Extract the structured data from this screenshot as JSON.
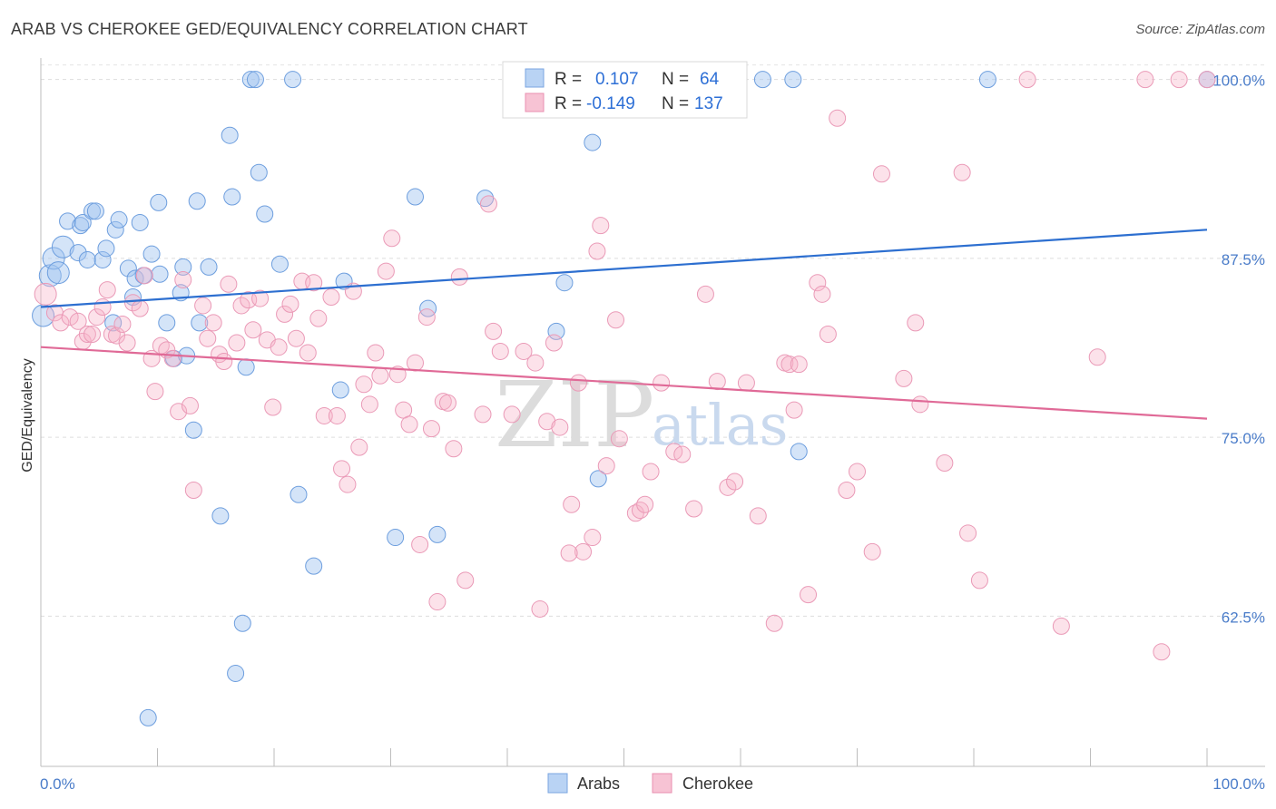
{
  "title": "ARAB VS CHEROKEE GED/EQUIVALENCY CORRELATION CHART",
  "source": "Source: ZipAtlas.com",
  "watermark": {
    "zip": "ZIP",
    "atlas": "atlas"
  },
  "colors": {
    "arabs": "#4a86d8",
    "cherokee": "#e56f9c",
    "axis_text": "#4a7cc9"
  },
  "chart_data": {
    "type": "scatter",
    "ylabel": "GED/Equivalency",
    "xlim": [
      0,
      100
    ],
    "ylim": [
      52,
      101.5
    ],
    "x_ticks": [
      0,
      10,
      20,
      30,
      40,
      50,
      60,
      70,
      80,
      90,
      100
    ],
    "x_tick_labels": {
      "left": "0.0%",
      "right": "100.0%"
    },
    "y_ticks": [
      {
        "value": 100,
        "label": "100.0%"
      },
      {
        "value": 87.5,
        "label": "87.5%"
      },
      {
        "value": 75,
        "label": "75.0%"
      },
      {
        "value": 62.5,
        "label": "62.5%"
      }
    ],
    "grid": true,
    "legend": {
      "placement": "top-center",
      "rows": [
        {
          "r_label": "R =",
          "r_value": "0.107",
          "n_label": "N =",
          "n_value": "64"
        },
        {
          "r_label": "R =",
          "r_value": "-0.149",
          "n_label": "N =",
          "n_value": "137"
        }
      ]
    },
    "series": [
      {
        "name": "Arabs",
        "trend": {
          "x": [
            0,
            100
          ],
          "y": [
            84.1,
            89.5
          ]
        },
        "points": [
          [
            0.2,
            83.5
          ],
          [
            0.8,
            86.3
          ],
          [
            1.1,
            87.5
          ],
          [
            1.5,
            86.5
          ],
          [
            1.9,
            88.3
          ],
          [
            2.3,
            90.1
          ],
          [
            3.2,
            87.9
          ],
          [
            3.4,
            89.8
          ],
          [
            3.6,
            90.0
          ],
          [
            4.0,
            87.4
          ],
          [
            4.4,
            90.8
          ],
          [
            4.7,
            90.8
          ],
          [
            5.3,
            87.4
          ],
          [
            5.6,
            88.2
          ],
          [
            6.2,
            83.0
          ],
          [
            6.4,
            89.5
          ],
          [
            6.7,
            90.2
          ],
          [
            7.5,
            86.8
          ],
          [
            7.9,
            84.8
          ],
          [
            8.1,
            86.1
          ],
          [
            8.5,
            90.0
          ],
          [
            8.8,
            86.3
          ],
          [
            9.5,
            87.8
          ],
          [
            10.1,
            91.4
          ],
          [
            10.2,
            86.4
          ],
          [
            10.8,
            83.0
          ],
          [
            11.4,
            80.5
          ],
          [
            12.0,
            85.1
          ],
          [
            12.2,
            86.9
          ],
          [
            12.5,
            80.7
          ],
          [
            13.1,
            75.5
          ],
          [
            13.4,
            91.5
          ],
          [
            13.6,
            83.0
          ],
          [
            14.4,
            86.9
          ],
          [
            15.4,
            69.5
          ],
          [
            16.2,
            96.1
          ],
          [
            16.4,
            91.8
          ],
          [
            16.7,
            58.5
          ],
          [
            17.3,
            62.0
          ],
          [
            17.6,
            79.9
          ],
          [
            18.0,
            100.0
          ],
          [
            18.4,
            100.0
          ],
          [
            18.7,
            93.5
          ],
          [
            19.2,
            90.6
          ],
          [
            20.5,
            87.1
          ],
          [
            21.6,
            100.0
          ],
          [
            22.1,
            71.0
          ],
          [
            23.4,
            66.0
          ],
          [
            25.7,
            78.3
          ],
          [
            26.0,
            85.9
          ],
          [
            30.4,
            68.0
          ],
          [
            32.1,
            91.8
          ],
          [
            33.2,
            84.0
          ],
          [
            34.0,
            68.2
          ],
          [
            38.1,
            91.7
          ],
          [
            44.2,
            82.4
          ],
          [
            44.9,
            85.8
          ],
          [
            47.3,
            95.6
          ],
          [
            47.8,
            72.1
          ],
          [
            61.9,
            100.0
          ],
          [
            64.5,
            100.0
          ],
          [
            65.0,
            74.0
          ],
          [
            81.2,
            100.0
          ],
          [
            100.0,
            100.0
          ],
          [
            9.2,
            55.4
          ]
        ]
      },
      {
        "name": "Cherokee",
        "trend": {
          "x": [
            0,
            100
          ],
          "y": [
            81.3,
            76.3
          ]
        },
        "points": [
          [
            0.4,
            85.0
          ],
          [
            1.2,
            83.7
          ],
          [
            1.7,
            83.0
          ],
          [
            2.5,
            83.4
          ],
          [
            3.2,
            83.1
          ],
          [
            3.6,
            81.7
          ],
          [
            4.0,
            82.2
          ],
          [
            4.4,
            82.2
          ],
          [
            4.8,
            83.4
          ],
          [
            5.3,
            84.1
          ],
          [
            5.7,
            85.3
          ],
          [
            6.1,
            82.2
          ],
          [
            6.5,
            82.1
          ],
          [
            7.0,
            82.9
          ],
          [
            7.4,
            81.6
          ],
          [
            7.9,
            84.4
          ],
          [
            8.5,
            84.0
          ],
          [
            8.9,
            86.3
          ],
          [
            9.5,
            80.5
          ],
          [
            9.8,
            78.2
          ],
          [
            10.3,
            81.4
          ],
          [
            10.8,
            81.1
          ],
          [
            11.3,
            80.5
          ],
          [
            11.8,
            76.8
          ],
          [
            12.2,
            86.0
          ],
          [
            12.8,
            77.2
          ],
          [
            13.1,
            71.3
          ],
          [
            13.9,
            84.2
          ],
          [
            14.3,
            81.9
          ],
          [
            14.8,
            83.0
          ],
          [
            15.3,
            80.8
          ],
          [
            15.7,
            80.3
          ],
          [
            16.1,
            85.7
          ],
          [
            16.8,
            81.6
          ],
          [
            17.2,
            84.2
          ],
          [
            17.8,
            84.6
          ],
          [
            18.2,
            82.5
          ],
          [
            18.8,
            84.7
          ],
          [
            19.4,
            81.8
          ],
          [
            19.9,
            77.1
          ],
          [
            20.4,
            81.3
          ],
          [
            20.9,
            83.6
          ],
          [
            21.4,
            84.3
          ],
          [
            21.9,
            81.9
          ],
          [
            22.4,
            85.9
          ],
          [
            22.9,
            80.9
          ],
          [
            23.4,
            85.8
          ],
          [
            23.8,
            83.3
          ],
          [
            24.3,
            76.5
          ],
          [
            24.9,
            84.8
          ],
          [
            25.4,
            76.5
          ],
          [
            25.8,
            72.8
          ],
          [
            26.3,
            71.7
          ],
          [
            26.8,
            85.2
          ],
          [
            27.3,
            74.3
          ],
          [
            27.7,
            78.7
          ],
          [
            28.2,
            77.3
          ],
          [
            28.7,
            80.9
          ],
          [
            29.1,
            79.3
          ],
          [
            29.6,
            86.6
          ],
          [
            30.1,
            88.9
          ],
          [
            30.6,
            79.4
          ],
          [
            31.1,
            76.9
          ],
          [
            31.6,
            75.9
          ],
          [
            32.1,
            80.2
          ],
          [
            32.5,
            67.5
          ],
          [
            33.1,
            83.4
          ],
          [
            33.5,
            75.6
          ],
          [
            34.0,
            63.5
          ],
          [
            34.5,
            77.5
          ],
          [
            34.9,
            77.4
          ],
          [
            35.4,
            74.2
          ],
          [
            35.9,
            86.2
          ],
          [
            36.4,
            65.0
          ],
          [
            37.9,
            76.6
          ],
          [
            38.4,
            91.3
          ],
          [
            38.8,
            82.4
          ],
          [
            39.4,
            81.0
          ],
          [
            40.4,
            76.6
          ],
          [
            41.4,
            81.0
          ],
          [
            42.4,
            80.2
          ],
          [
            43.4,
            76.1
          ],
          [
            44.0,
            81.6
          ],
          [
            44.5,
            75.7
          ],
          [
            45.5,
            70.3
          ],
          [
            46.1,
            78.8
          ],
          [
            46.5,
            67.0
          ],
          [
            47.3,
            68.0
          ],
          [
            47.7,
            88.0
          ],
          [
            48.0,
            89.8
          ],
          [
            48.5,
            73.0
          ],
          [
            49.3,
            83.2
          ],
          [
            49.6,
            74.9
          ],
          [
            51.0,
            69.7
          ],
          [
            51.4,
            69.9
          ],
          [
            51.8,
            70.3
          ],
          [
            52.3,
            72.6
          ],
          [
            53.2,
            78.8
          ],
          [
            54.3,
            74.0
          ],
          [
            55.0,
            73.8
          ],
          [
            56.0,
            70.0
          ],
          [
            57.0,
            85.0
          ],
          [
            58.0,
            78.9
          ],
          [
            58.9,
            71.5
          ],
          [
            59.5,
            71.9
          ],
          [
            60.5,
            78.8
          ],
          [
            61.5,
            69.5
          ],
          [
            62.9,
            62.0
          ],
          [
            63.8,
            80.2
          ],
          [
            64.2,
            80.1
          ],
          [
            64.6,
            76.9
          ],
          [
            65.0,
            80.1
          ],
          [
            65.8,
            64.0
          ],
          [
            66.6,
            85.8
          ],
          [
            67.0,
            85.0
          ],
          [
            67.5,
            82.2
          ],
          [
            68.3,
            97.3
          ],
          [
            69.1,
            71.3
          ],
          [
            70.0,
            72.6
          ],
          [
            71.3,
            67.0
          ],
          [
            72.1,
            93.4
          ],
          [
            74.0,
            79.1
          ],
          [
            75.0,
            83.0
          ],
          [
            75.4,
            77.3
          ],
          [
            77.5,
            73.2
          ],
          [
            79.0,
            93.5
          ],
          [
            79.5,
            68.3
          ],
          [
            80.5,
            65.0
          ],
          [
            84.6,
            100.0
          ],
          [
            87.5,
            61.8
          ],
          [
            90.6,
            80.6
          ],
          [
            94.7,
            100.0
          ],
          [
            96.1,
            60.0
          ],
          [
            97.6,
            100.0
          ],
          [
            100.0,
            100.0
          ],
          [
            45.3,
            66.9
          ],
          [
            42.8,
            63.0
          ]
        ]
      }
    ],
    "bottom_legend": [
      "Arabs",
      "Cherokee"
    ]
  }
}
